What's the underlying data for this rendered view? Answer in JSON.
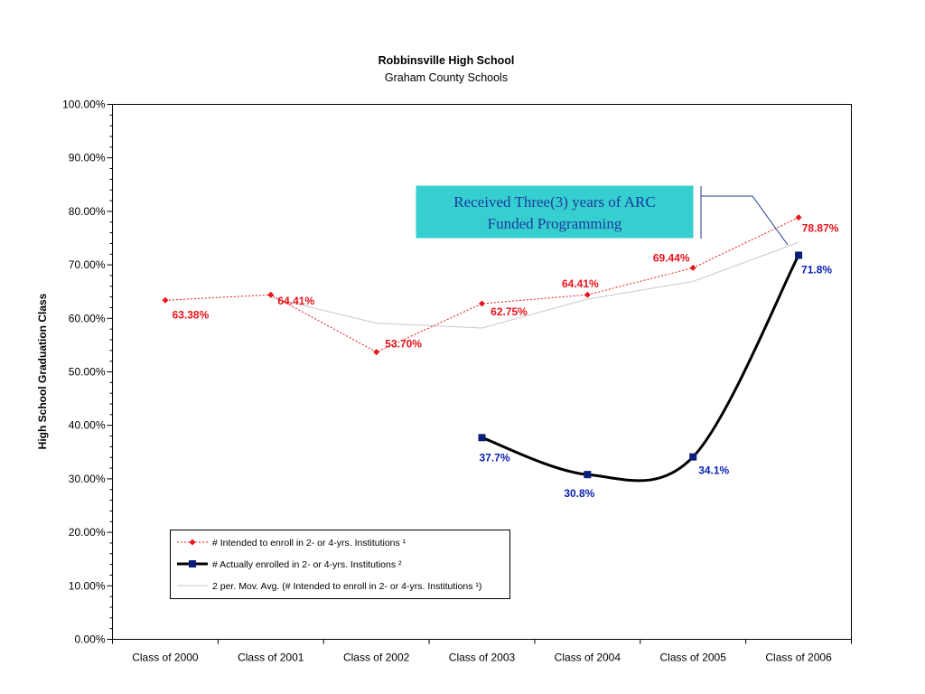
{
  "chart_data": {
    "type": "line",
    "title": "Robbinsville High School",
    "subtitle": "Graham County Schools",
    "xlabel": "",
    "ylabel": "High School Graduation Class",
    "ylim": [
      0,
      100
    ],
    "yticks": [
      "0.00%",
      "10.00%",
      "20.00%",
      "30.00%",
      "40.00%",
      "50.00%",
      "60.00%",
      "70.00%",
      "80.00%",
      "90.00%",
      "100.00%"
    ],
    "categories": [
      "Class of 2000",
      "Class of 2001",
      "Class of 2002",
      "Class of 2003",
      "Class of 2004",
      "Class of 2005",
      "Class of 2006"
    ],
    "legend_position": "bottom-left inside plot",
    "grid": false,
    "series": [
      {
        "name": "# Intended to enroll in 2- or 4-yrs. Institutions ¹",
        "style": "dotted line with diamond markers",
        "color": "#e8141b",
        "values": [
          63.38,
          64.41,
          53.7,
          62.75,
          64.41,
          69.44,
          78.87
        ],
        "data_labels": [
          "63.38%",
          "64.41%",
          "53.70%",
          "62.75%",
          "64.41%",
          "69.44%",
          "78.87%"
        ]
      },
      {
        "name": "# Actually enrolled in 2- or 4-yrs. Institutions ²",
        "style": "smoothed thick black line with navy square markers",
        "color": "#000000",
        "marker_color": "#0b1d7a",
        "values": [
          null,
          null,
          null,
          37.7,
          30.8,
          34.1,
          71.8
        ],
        "data_labels": [
          "",
          "",
          "",
          "37.7%",
          "30.8%",
          "34.1%",
          "71.8%"
        ]
      },
      {
        "name": "2 per. Mov. Avg. (# Intended to enroll in 2- or 4-yrs. Institutions ¹)",
        "style": "thin light gray line",
        "color": "#c8c8c8",
        "values": [
          null,
          63.9,
          59.1,
          58.2,
          63.6,
          66.9,
          74.2
        ]
      }
    ],
    "annotation": {
      "lines": [
        "Received Three(3) years of ARC",
        "Funded Programming"
      ],
      "background": "#36cfcf",
      "text_color": "#1c3a9e",
      "line_color": "#1f3b8f"
    }
  }
}
